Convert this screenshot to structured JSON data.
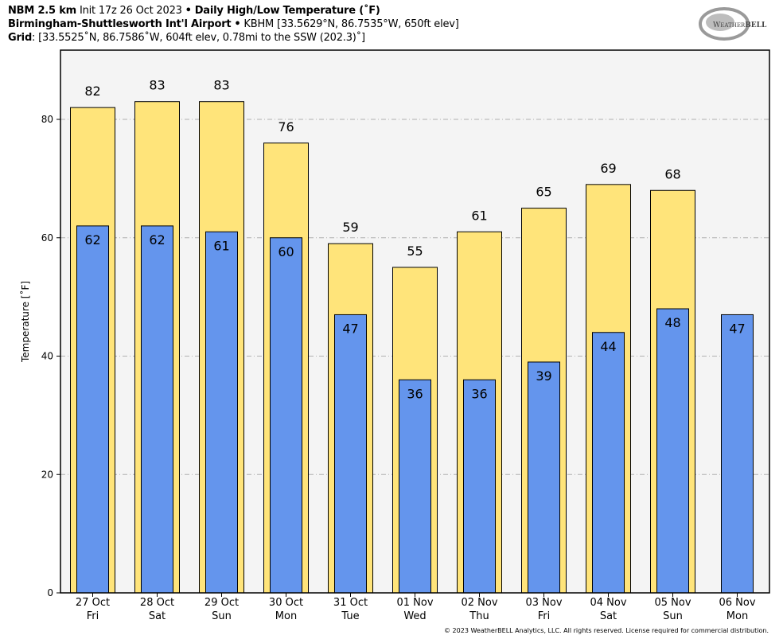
{
  "header": {
    "model": "NBM 2.5 km",
    "init": "Init 17z 26 Oct 2023",
    "bullet": "•",
    "product": "Daily High/Low Temperature (˚F)",
    "station_name": "Birmingham-Shuttlesworth Int'l Airport",
    "station_info": "KBHM [33.5629°N, 86.7535°W, 650ft elev]",
    "grid_label": "Grid",
    "grid_info": ": [33.5525˚N, 86.7586˚W, 604ft elev, 0.78mi to the SSW (202.3)˚]"
  },
  "logo": {
    "text": "WeatherBELL Analytics LLC",
    "icon": "weatherbell-swirl-logo"
  },
  "footer": "© 2023 WeatherBELL Analytics, LLC. All rights reserved. License required for commercial distribution.",
  "chart_data": {
    "type": "bar",
    "title": "Daily High/Low Temperature (˚F)",
    "ylabel": "Temperature [˚F]",
    "ylim": [
      0,
      91.7
    ],
    "yticks": [
      0,
      20,
      40,
      60,
      80
    ],
    "grid": true,
    "categories": [
      {
        "date": "27 Oct",
        "day": "Fri"
      },
      {
        "date": "28 Oct",
        "day": "Sat"
      },
      {
        "date": "29 Oct",
        "day": "Sun"
      },
      {
        "date": "30 Oct",
        "day": "Mon"
      },
      {
        "date": "31 Oct",
        "day": "Tue"
      },
      {
        "date": "01 Nov",
        "day": "Wed"
      },
      {
        "date": "02 Nov",
        "day": "Thu"
      },
      {
        "date": "03 Nov",
        "day": "Fri"
      },
      {
        "date": "04 Nov",
        "day": "Sat"
      },
      {
        "date": "05 Nov",
        "day": "Sun"
      },
      {
        "date": "06 Nov",
        "day": "Mon"
      }
    ],
    "series": [
      {
        "key": "high",
        "color": "#FFE47A",
        "values": [
          82,
          83,
          83,
          76,
          59,
          55,
          61,
          65,
          69,
          68,
          null
        ]
      },
      {
        "key": "low",
        "color": "#6495ED",
        "values": [
          62,
          62,
          61,
          60,
          47,
          36,
          36,
          39,
          44,
          48,
          47
        ]
      }
    ]
  }
}
